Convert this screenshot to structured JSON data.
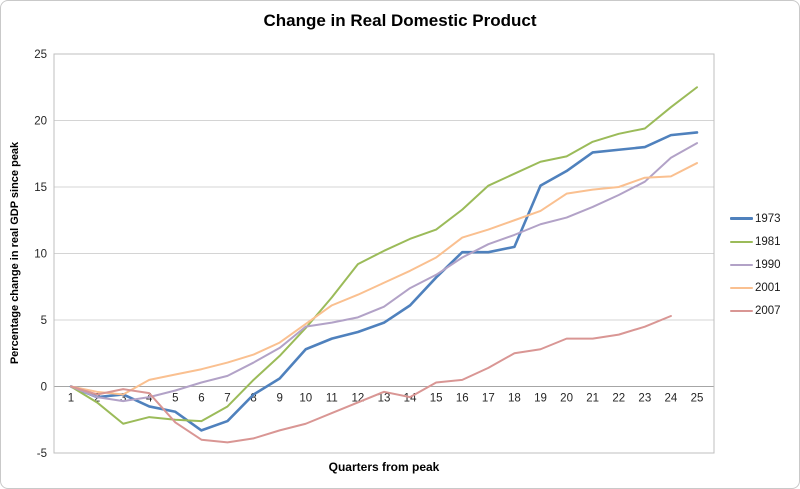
{
  "chart_data": {
    "type": "line",
    "title": "Change in Real Domestic Product",
    "xlabel": "Quarters from peak",
    "ylabel": "Percentage change in real GDP since peak",
    "x": [
      1,
      2,
      3,
      4,
      5,
      6,
      7,
      8,
      9,
      10,
      11,
      12,
      13,
      14,
      15,
      16,
      17,
      18,
      19,
      20,
      21,
      22,
      23,
      24,
      25
    ],
    "ylim": [
      -5,
      25
    ],
    "yticks": [
      25,
      20,
      15,
      10,
      5,
      0,
      -5
    ],
    "grid": "horizontal",
    "legend_position": "right",
    "series": [
      {
        "name": "1973",
        "color": "#4F81BD",
        "width": 2.6,
        "values": [
          0,
          -0.8,
          -0.6,
          -1.5,
          -1.9,
          -3.3,
          -2.6,
          -0.6,
          0.6,
          2.8,
          3.6,
          4.1,
          4.8,
          6.1,
          8.2,
          10.1,
          10.1,
          10.5,
          15.1,
          16.2,
          17.6,
          17.8,
          18.0,
          18.9,
          19.1
        ]
      },
      {
        "name": "1981",
        "color": "#9BBB59",
        "width": 2,
        "values": [
          0,
          -1.2,
          -2.8,
          -2.3,
          -2.5,
          -2.6,
          -1.5,
          0.5,
          2.3,
          4.4,
          6.7,
          9.2,
          10.2,
          11.1,
          11.8,
          13.3,
          15.1,
          16.0,
          16.9,
          17.3,
          18.4,
          19.0,
          19.4,
          21.0,
          22.5
        ]
      },
      {
        "name": "1990",
        "color": "#B2A2C7",
        "width": 2,
        "values": [
          0,
          -0.8,
          -1.1,
          -0.8,
          -0.3,
          0.3,
          0.8,
          1.8,
          2.9,
          4.5,
          4.8,
          5.2,
          6.0,
          7.4,
          8.4,
          9.7,
          10.7,
          11.4,
          12.2,
          12.7,
          13.5,
          14.4,
          15.4,
          17.2,
          18.3
        ]
      },
      {
        "name": "2001",
        "color": "#FAC090",
        "width": 2,
        "values": [
          0,
          -0.4,
          -0.6,
          0.5,
          0.9,
          1.3,
          1.8,
          2.4,
          3.3,
          4.7,
          6.1,
          6.9,
          7.8,
          8.7,
          9.7,
          11.2,
          11.8,
          12.5,
          13.2,
          14.5,
          14.8,
          15.0,
          15.7,
          15.8,
          16.8
        ]
      },
      {
        "name": "2007",
        "color": "#D99694",
        "width": 2,
        "values": [
          0,
          -0.6,
          -0.2,
          -0.5,
          -2.7,
          -4.0,
          -4.2,
          -3.9,
          -3.3,
          -2.8,
          -2.0,
          -1.2,
          -0.4,
          -0.8,
          0.3,
          0.5,
          1.4,
          2.5,
          2.8,
          3.6,
          3.6,
          3.9,
          4.5,
          5.3
        ]
      }
    ]
  },
  "colors": {
    "gridline": "#D4D4D4",
    "zero_axis": "#A6A6A6",
    "plot_border": "#BFBFBF",
    "tick_text": "#262626"
  }
}
